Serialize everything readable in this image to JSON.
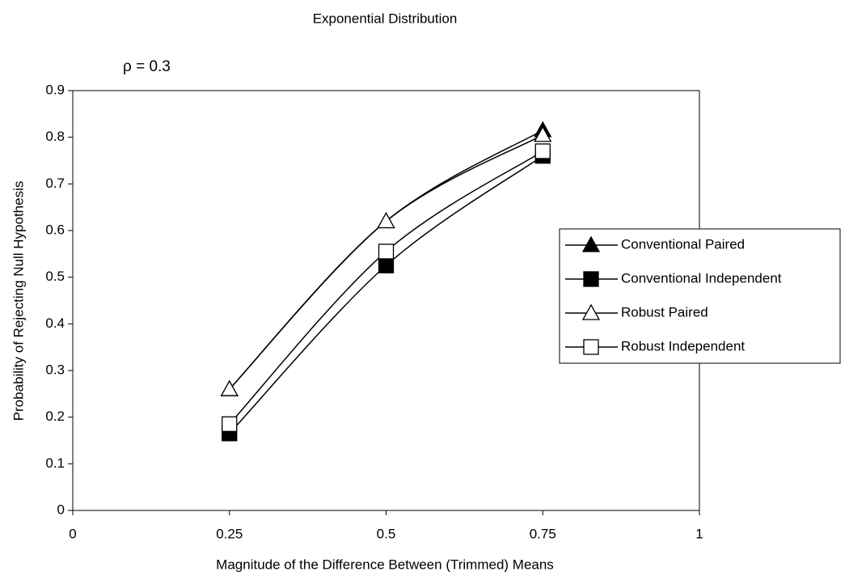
{
  "chart_data": {
    "type": "line",
    "title": "Exponential Distribution",
    "annotation": "ρ = 0.3",
    "x_label": "Magnitude of the Difference Between (Trimmed) Means",
    "y_label": "Probability of Rejecting Null Hypothesis",
    "x": [
      0.25,
      0.5,
      0.75
    ],
    "series": [
      {
        "name": "Conventional Paired",
        "color": "#000000",
        "marker": "triangle",
        "marker_fill": "#000000",
        "values": [
          0.26,
          0.62,
          0.815
        ]
      },
      {
        "name": "Conventional Independent",
        "color": "#000000",
        "marker": "square",
        "marker_fill": "#000000",
        "values": [
          0.165,
          0.525,
          0.76
        ]
      },
      {
        "name": "Robust Paired",
        "color": "#000000",
        "marker": "triangle",
        "marker_fill": "#ffffff",
        "values": [
          0.26,
          0.62,
          0.805
        ]
      },
      {
        "name": "Robust Independent",
        "color": "#000000",
        "marker": "square",
        "marker_fill": "#ffffff",
        "values": [
          0.185,
          0.555,
          0.77
        ]
      }
    ],
    "xlim": [
      0,
      1
    ],
    "xticks": [
      0,
      0.25,
      0.5,
      0.75,
      1
    ],
    "ylim": [
      0,
      0.9
    ],
    "yticks": [
      0,
      0.1,
      0.2,
      0.3,
      0.4,
      0.5,
      0.6,
      0.7,
      0.8,
      0.9
    ],
    "grid": false,
    "smooth": true,
    "legend": "right"
  }
}
